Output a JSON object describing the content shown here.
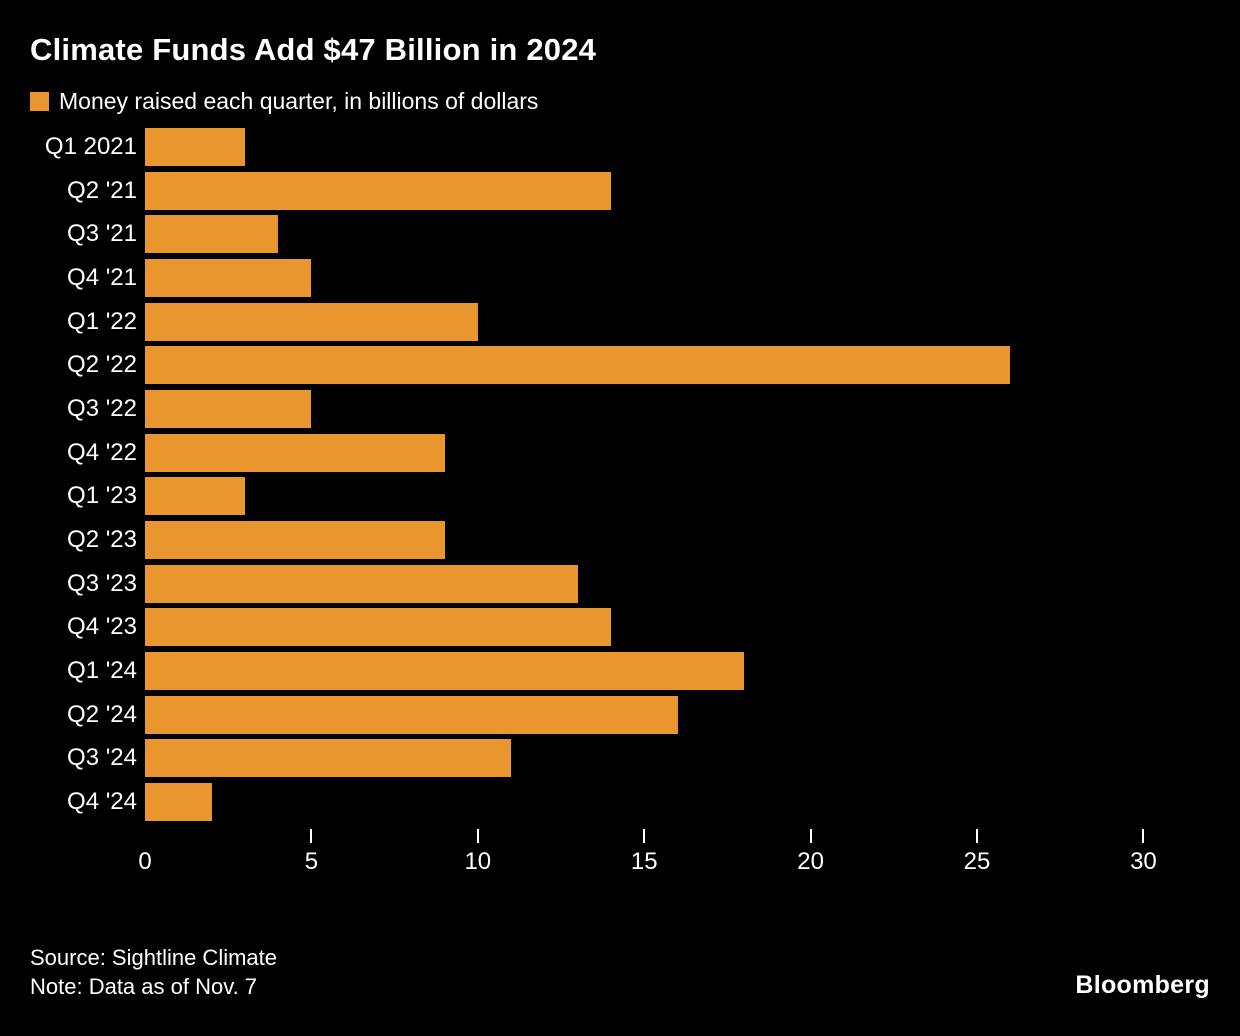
{
  "title": "Climate Funds Add $47 Billion in 2024",
  "legend": {
    "label": "Money raised each quarter, in billions of dollars",
    "swatch_color": "#E8962D"
  },
  "colors": {
    "background": "#000000",
    "bar": "#E8962D",
    "text": "#FFFFFF"
  },
  "footer": {
    "source": "Source: Sightline Climate",
    "note": "Note: Data as of Nov. 7",
    "brand": "Bloomberg"
  },
  "chart_data": {
    "type": "bar",
    "orientation": "horizontal",
    "title": "Climate Funds Add $47 Billion in 2024",
    "legend": [
      "Money raised each quarter, in billions of dollars"
    ],
    "categories": [
      "Q1 2021",
      "Q2 '21",
      "Q3 '21",
      "Q4 '21",
      "Q1 '22",
      "Q2 '22",
      "Q3 '22",
      "Q4 '22",
      "Q1 '23",
      "Q2 '23",
      "Q3 '23",
      "Q4 '23",
      "Q1 '24",
      "Q2 '24",
      "Q3 '24",
      "Q4 '24"
    ],
    "values": [
      3,
      14,
      4,
      5,
      10,
      26,
      5,
      9,
      3,
      9,
      13,
      14,
      18,
      16,
      11,
      2
    ],
    "xlabel": "",
    "ylabel": "",
    "xlim": [
      0,
      32
    ],
    "xticks": [
      0,
      5,
      10,
      15,
      20,
      25,
      30
    ],
    "grid": false,
    "legend_position": "top-left"
  }
}
